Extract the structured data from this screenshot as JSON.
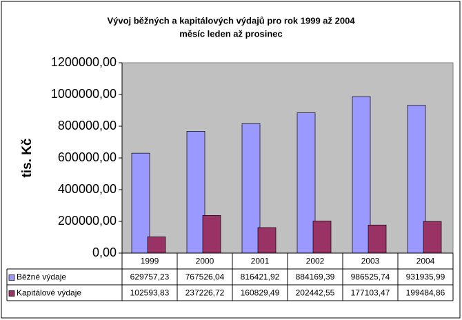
{
  "chart_data": {
    "type": "bar",
    "title": "Vývoj běžných a kapitálových výdajů pro rok 1999 až 2004",
    "subtitle": "měsíc leden až prosinec",
    "y_label": "tis. Kč",
    "categories": [
      "1999",
      "2000",
      "2001",
      "2002",
      "2003",
      "2004"
    ],
    "series": [
      {
        "name": "Běžné výdaje",
        "color": "#9999ff",
        "values": [
          629757.23,
          767526.04,
          816421.92,
          884169.39,
          986525.74,
          931935.99
        ],
        "value_labels": [
          "629757,23",
          "767526,04",
          "816421,92",
          "884169,39",
          "986525,74",
          "931935,99"
        ]
      },
      {
        "name": "Kapitálové výdaje",
        "color": "#993366",
        "values": [
          102593.83,
          237226.72,
          160829.49,
          202442.55,
          177103.47,
          199484.86
        ],
        "value_labels": [
          "102593,83",
          "237226,72",
          "160829,49",
          "202442,55",
          "177103,47",
          "199484,86"
        ]
      }
    ],
    "ylim": [
      0,
      1200000
    ],
    "yticks": [
      {
        "value": 0,
        "label": "0,00"
      },
      {
        "value": 200000,
        "label": "200000,00"
      },
      {
        "value": 400000,
        "label": "400000,00"
      },
      {
        "value": 600000,
        "label": "600000,00"
      },
      {
        "value": 800000,
        "label": "800000,00"
      },
      {
        "value": 1000000,
        "label": "1000000,00"
      },
      {
        "value": 1200000,
        "label": "1200000,00"
      }
    ],
    "grid": false,
    "plot_background": "#c0c0c0"
  }
}
